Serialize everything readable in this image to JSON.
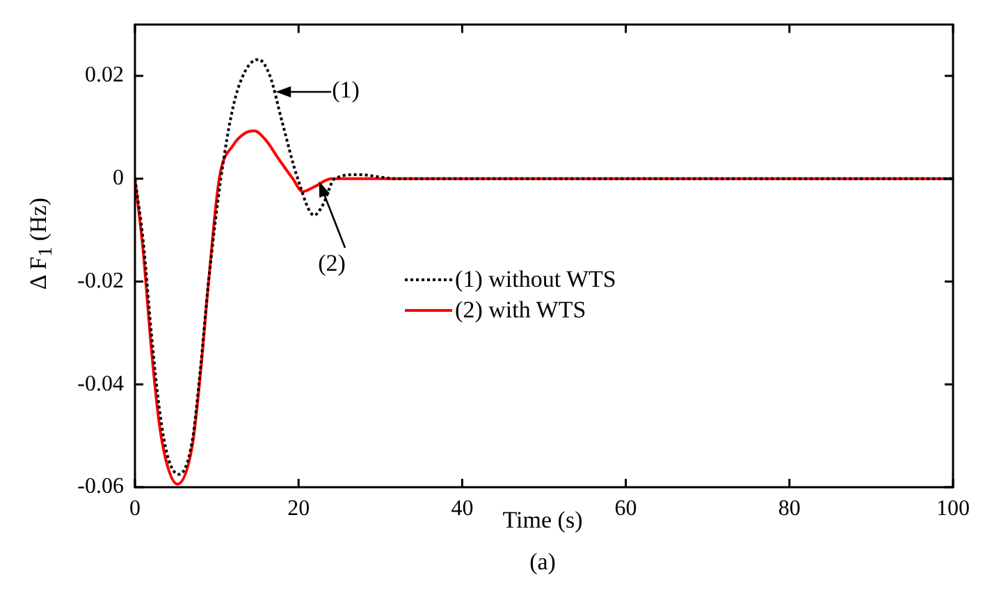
{
  "chart_data": {
    "type": "line",
    "xlabel": "Time (s)",
    "ylabel": "Δ F$_{1}$ (Hz)",
    "xlim": [
      0,
      100
    ],
    "xticks": [
      0,
      20,
      40,
      60,
      80,
      100
    ],
    "ylim": [
      -0.06,
      0.03
    ],
    "yticks": [
      -0.06,
      -0.04,
      -0.02,
      0,
      0.02
    ],
    "grid": false,
    "legend": "center",
    "marker": "none",
    "series": [
      {
        "name": "(1) without WTS",
        "color": "#000000",
        "line_style": "dotted",
        "x": [
          0,
          1,
          2,
          3,
          4,
          5.4,
          7,
          8,
          9,
          10.5,
          12,
          13.5,
          15.1,
          16.5,
          18,
          19.9,
          21.9,
          23,
          24.4,
          27.3,
          32,
          100
        ],
        "values": [
          0,
          -0.012,
          -0.03,
          -0.045,
          -0.054,
          -0.0575,
          -0.051,
          -0.037,
          -0.02,
          0,
          0.014,
          0.021,
          0.0232,
          0.02,
          0.011,
          0,
          -0.0071,
          -0.005,
          0,
          0.0008,
          0,
          0
        ]
      },
      {
        "name": "(2) with WTS",
        "color": "#ff0000",
        "line_style": "solid",
        "x": [
          0,
          1,
          2,
          3,
          4,
          5.2,
          7,
          8,
          9,
          10.3,
          12,
          13.5,
          14.6,
          16,
          17.5,
          19.3,
          20.5,
          22,
          24,
          100
        ],
        "values": [
          0,
          -0.014,
          -0.033,
          -0.048,
          -0.056,
          -0.0594,
          -0.052,
          -0.038,
          -0.02,
          0,
          0.0065,
          0.0089,
          0.0093,
          0.0075,
          0.004,
          0,
          -0.0025,
          -0.0015,
          0,
          0
        ]
      }
    ],
    "annotations": [
      {
        "text": "(1)",
        "x": 17.6,
        "y": 0.017
      },
      {
        "text": "(2)",
        "x": 22.7,
        "y": -0.001
      },
      "(a)"
    ]
  }
}
